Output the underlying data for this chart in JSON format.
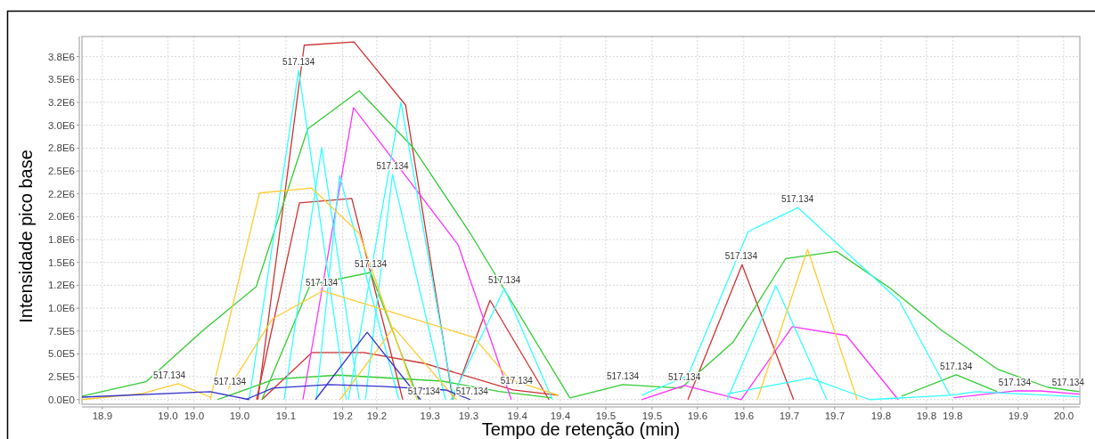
{
  "chart_data": {
    "type": "line",
    "xlabel": "Tempo de retenção (min)",
    "ylabel": "Intensidade pico base",
    "grid": true,
    "xlim": [
      18.8527,
      19.9945
    ],
    "ylim": [
      -51000,
      3970000
    ],
    "xticks": [
      {
        "value": 18.876,
        "label": "18.9"
      },
      {
        "value": 18.951,
        "label": "19.0"
      },
      {
        "value": 18.981,
        "label": "19.0"
      },
      {
        "value": 19.033,
        "label": "19.0"
      },
      {
        "value": 19.086,
        "label": "19.1"
      },
      {
        "value": 19.151,
        "label": "19.2"
      },
      {
        "value": 19.19,
        "label": "19.2"
      },
      {
        "value": 19.251,
        "label": "19.3"
      },
      {
        "value": 19.295,
        "label": "19.3"
      },
      {
        "value": 19.351,
        "label": "19.4"
      },
      {
        "value": 19.4,
        "label": "19.4"
      },
      {
        "value": 19.452,
        "label": "19.5"
      },
      {
        "value": 19.505,
        "label": "19.5"
      },
      {
        "value": 19.557,
        "label": "19.6"
      },
      {
        "value": 19.61,
        "label": "19.6"
      },
      {
        "value": 19.662,
        "label": "19.7"
      },
      {
        "value": 19.714,
        "label": "19.7"
      },
      {
        "value": 19.767,
        "label": "19.8"
      },
      {
        "value": 19.819,
        "label": "19.8"
      },
      {
        "value": 19.849,
        "label": "19.8"
      },
      {
        "value": 19.924,
        "label": "19.9"
      },
      {
        "value": 19.976,
        "label": "20.0"
      }
    ],
    "yticks": [
      {
        "value": 0,
        "label": "0.0E0"
      },
      {
        "value": 250000,
        "label": "2.5E5"
      },
      {
        "value": 500000,
        "label": "5.0E5"
      },
      {
        "value": 750000,
        "label": "7.5E5"
      },
      {
        "value": 1000000,
        "label": "1.0E6"
      },
      {
        "value": 1250000,
        "label": "1.2E6"
      },
      {
        "value": 1500000,
        "label": "1.5E6"
      },
      {
        "value": 1750000,
        "label": "1.8E6"
      },
      {
        "value": 2000000,
        "label": "2.0E6"
      },
      {
        "value": 2250000,
        "label": "2.2E6"
      },
      {
        "value": 2500000,
        "label": "2.5E6"
      },
      {
        "value": 2750000,
        "label": "2.8E6"
      },
      {
        "value": 3000000,
        "label": "3.0E6"
      },
      {
        "value": 3250000,
        "label": "3.2E6"
      },
      {
        "value": 3500000,
        "label": "3.5E6"
      },
      {
        "value": 3750000,
        "label": "3.8E6"
      }
    ],
    "series": [
      {
        "color": "#cc3333",
        "x": [
          19.054,
          19.107,
          19.164,
          19.223,
          19.277
        ],
        "values": [
          0,
          3875000,
          3910000,
          3220000,
          0
        ]
      },
      {
        "color": "#cc3333",
        "x": [
          19.0525,
          19.1015,
          19.1614,
          19.2197
        ],
        "values": [
          0,
          2150000,
          2200000,
          0
        ]
      },
      {
        "color": "#cc3333",
        "x": [
          19.0586,
          19.1157,
          19.175,
          19.244,
          19.346,
          19.398
        ],
        "values": [
          0,
          514000,
          514000,
          397000,
          105000,
          47000
        ]
      },
      {
        "color": "#cc3333",
        "x": [
          19.277,
          19.3196,
          19.387
        ],
        "values": [
          0,
          1086000,
          0
        ]
      },
      {
        "color": "#cc3333",
        "x": [
          19.546,
          19.608,
          19.667
        ],
        "values": [
          0,
          1476000,
          0
        ]
      },
      {
        "color": "#33cc33",
        "x": [
          18.8527,
          18.926,
          18.99,
          19.052,
          19.111,
          19.17,
          19.232,
          19.297,
          19.411
        ],
        "values": [
          37000,
          195000,
          748000,
          1234000,
          2960000,
          3376000,
          2750000,
          1818000,
          18000
        ]
      },
      {
        "color": "#33cc33",
        "x": [
          19.411,
          19.4715,
          19.538,
          19.598,
          19.658,
          19.716,
          19.778,
          19.835,
          19.901,
          19.958,
          19.994
        ],
        "values": [
          18000,
          164000,
          125000,
          631000,
          1543000,
          1620000,
          1215000,
          767000,
          329000,
          134000,
          86000
        ]
      },
      {
        "color": "#33cc33",
        "x": [
          19.0077,
          19.073,
          19.146,
          19.265,
          19.33,
          19.391
        ],
        "values": [
          0,
          222000,
          268000,
          202000,
          88000,
          18000
        ]
      },
      {
        "color": "#33cc33",
        "x": [
          19.0586,
          19.1137,
          19.183,
          19.238
        ],
        "values": [
          0,
          1254000,
          1390000,
          0
        ]
      },
      {
        "color": "#33cc33",
        "x": [
          19.7906,
          19.853,
          19.9
        ],
        "values": [
          37000,
          271000,
          86000
        ]
      },
      {
        "color": "#ff33ff",
        "x": [
          19.1055,
          19.1634,
          19.283,
          19.344
        ],
        "values": [
          0,
          3193000,
          1694000,
          0
        ]
      },
      {
        "color": "#ff33ff",
        "x": [
          19.493,
          19.542,
          19.607,
          19.6654,
          19.7274,
          19.7866
        ],
        "values": [
          0,
          154000,
          0,
          798000,
          701000,
          0
        ]
      },
      {
        "color": "#ff33ff",
        "x": [
          19.85,
          19.921,
          19.949,
          19.994
        ],
        "values": [
          20000,
          97000,
          95000,
          60000
        ]
      },
      {
        "color": "#33ffff",
        "x": [
          19.044,
          19.1006,
          19.155
        ],
        "values": [
          0,
          3598000,
          0
        ]
      },
      {
        "color": "#33ffff",
        "x": [
          19.084,
          19.127,
          19.17
        ],
        "values": [
          0,
          2753000,
          0
        ]
      },
      {
        "color": "#33ffff",
        "x": [
          19.1208,
          19.1475,
          19.2153
        ],
        "values": [
          0,
          2449000,
          0
        ]
      },
      {
        "color": "#33ffff",
        "x": [
          19.1575,
          19.2177,
          19.278
        ],
        "values": [
          0,
          3248000,
          0
        ]
      },
      {
        "color": "#33ffff",
        "x": [
          19.177,
          19.208,
          19.2686
        ],
        "values": [
          0,
          2461000,
          0
        ]
      },
      {
        "color": "#33ffff",
        "x": [
          19.275,
          19.336,
          19.391
        ],
        "values": [
          0,
          1215000,
          0
        ]
      },
      {
        "color": "#33ffff",
        "x": [
          19.493,
          19.546,
          19.615,
          19.672,
          19.788,
          19.846
        ],
        "values": [
          47000,
          261000,
          1838000,
          2099000,
          1079000,
          47000
        ]
      },
      {
        "color": "#33ffff",
        "x": [
          19.591,
          19.6467,
          19.705
        ],
        "values": [
          0,
          1246000,
          0
        ]
      },
      {
        "color": "#33ffff",
        "x": [
          19.591,
          19.686,
          19.754,
          19.846,
          19.876,
          19.994
        ],
        "values": [
          62000,
          234000,
          0,
          47000,
          86000,
          30000
        ]
      },
      {
        "color": "#ffcc33",
        "x": [
          18.9995,
          19.0558,
          19.1157,
          19.17,
          19.236
        ],
        "values": [
          0,
          2259000,
          2313000,
          1818000,
          0
        ]
      },
      {
        "color": "#ffcc33",
        "x": [
          19.0199,
          19.0709,
          19.128,
          19.3013,
          19.342,
          19.398
        ],
        "values": [
          115000,
          884000,
          1188000,
          681000,
          222000,
          47000
        ]
      },
      {
        "color": "#ffcc33",
        "x": [
          18.8527,
          18.922,
          18.963,
          18.9995
        ],
        "values": [
          0,
          66000,
          175000,
          27000
        ]
      },
      {
        "color": "#ffcc33",
        "x": [
          19.6255,
          19.683,
          19.7397
        ],
        "values": [
          0,
          1643000,
          0
        ]
      },
      {
        "color": "#ffcc33",
        "x": [
          19.148,
          19.2095,
          19.281
        ],
        "values": [
          0,
          787000,
          0
        ]
      },
      {
        "color": "#3333cc",
        "x": [
          19.1198,
          19.179,
          19.2401
        ],
        "values": [
          0,
          736000,
          0
        ]
      },
      {
        "color": "#3333cc",
        "x": [
          19.04,
          19.071,
          19.136,
          19.195,
          19.269,
          19.297
        ],
        "values": [
          0,
          125000,
          164000,
          144000,
          105000,
          0
        ]
      },
      {
        "color": "#3333cc",
        "x": [
          18.8527,
          18.9995,
          19.044
        ],
        "values": [
          27000,
          86000,
          0
        ]
      }
    ],
    "annotations": [
      {
        "text": "517.134",
        "x": 18.9526,
        "y": 173000
      },
      {
        "text": "517.134",
        "x": 19.022,
        "y": 105000
      },
      {
        "text": "517.134",
        "x": 19.1006,
        "y": 3600000
      },
      {
        "text": "517.134",
        "x": 19.208,
        "y": 2461000
      },
      {
        "text": "517.134",
        "x": 19.127,
        "y": 1186000
      },
      {
        "text": "517.134",
        "x": 19.183,
        "y": 1390000
      },
      {
        "text": "517.134",
        "x": 19.244,
        "y": 0
      },
      {
        "text": "517.134",
        "x": 19.299,
        "y": 0
      },
      {
        "text": "517.134",
        "x": 19.336,
        "y": 1215000
      },
      {
        "text": "517.134",
        "x": 19.35,
        "y": 117000
      },
      {
        "text": "517.134",
        "x": 19.4715,
        "y": 167000
      },
      {
        "text": "517.134",
        "x": 19.542,
        "y": 156000
      },
      {
        "text": "517.134",
        "x": 19.607,
        "y": 1480000
      },
      {
        "text": "517.134",
        "x": 19.6713,
        "y": 2100000
      },
      {
        "text": "517.134",
        "x": 19.853,
        "y": 273000
      },
      {
        "text": "517.134",
        "x": 19.92,
        "y": 97000
      },
      {
        "text": "517.134",
        "x": 19.981,
        "y": 97000
      }
    ]
  }
}
